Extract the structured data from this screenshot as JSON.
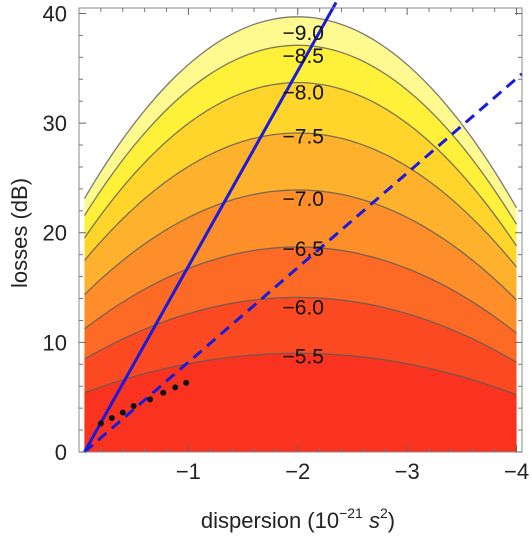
{
  "chart_data": {
    "type": "contour",
    "xlabel": {
      "base": "dispersion (10",
      "exponent": "−21",
      "unit": " s",
      "unit_exponent": "2",
      "close": ")"
    },
    "ylabel": "losses (dB)",
    "xlim": [
      0,
      -4.05
    ],
    "ylim": [
      0,
      40.5
    ],
    "x_ticks": [
      {
        "value": -1,
        "label": "−1"
      },
      {
        "value": -2,
        "label": "−2"
      },
      {
        "value": -3,
        "label": "−3"
      },
      {
        "value": -4,
        "label": "−4"
      }
    ],
    "y_ticks": [
      {
        "value": 0,
        "label": "0"
      },
      {
        "value": 10,
        "label": "10"
      },
      {
        "value": 20,
        "label": "20"
      },
      {
        "value": 30,
        "label": "30"
      },
      {
        "value": 40,
        "label": "40"
      }
    ],
    "filled_region_x": [
      -0.05,
      -4.0
    ],
    "contour_levels": [
      {
        "label": "−5.5",
        "value": -5.5,
        "peak_x": -2.0,
        "peak_y": 9.0,
        "fill": "#f9331f",
        "label_y": 8.7
      },
      {
        "label": "−6.0",
        "value": -6.0,
        "peak_x": -2.0,
        "peak_y": 14.1,
        "fill": "#fb4a22",
        "label_y": 13.2
      },
      {
        "label": "−6.5",
        "value": -6.5,
        "peak_x": -2.0,
        "peak_y": 18.7,
        "fill": "#fc6a26",
        "label_y": 18.5
      },
      {
        "label": "−7.0",
        "value": -7.0,
        "peak_x": -2.0,
        "peak_y": 23.9,
        "fill": "#fd8e2a",
        "label_y": 23.1
      },
      {
        "label": "−7.5",
        "value": -7.5,
        "peak_x": -2.0,
        "peak_y": 29.1,
        "fill": "#feb12c",
        "label_y": 28.8
      },
      {
        "label": "−8.0",
        "value": -8.0,
        "peak_x": -2.0,
        "peak_y": 33.7,
        "fill": "#ffd52c",
        "label_y": 32.8
      },
      {
        "label": "−8.5",
        "value": -8.5,
        "peak_x": -2.0,
        "peak_y": 37.1,
        "fill": "#fff03a",
        "label_y": 36.1
      },
      {
        "label": "−9.0",
        "value": -9.0,
        "peak_x": -2.0,
        "peak_y": 39.7,
        "fill": "#fffa90",
        "label_y": 38.2
      }
    ],
    "inner_fill": "#f7201a",
    "lines": [
      {
        "style": "solid",
        "color": "#1a1adb",
        "points": [
          [
            -0.05,
            0
          ],
          [
            -2.35,
            41.0
          ]
        ]
      },
      {
        "style": "dashed",
        "color": "#1a1adb",
        "points": [
          [
            -0.05,
            0
          ],
          [
            -4.05,
            34.5
          ]
        ]
      }
    ],
    "scatter": {
      "color": "#111111",
      "points": [
        [
          -0.2,
          2.6
        ],
        [
          -0.3,
          3.1
        ],
        [
          -0.4,
          3.6
        ],
        [
          -0.5,
          4.2
        ],
        [
          -0.65,
          4.8
        ],
        [
          -0.77,
          5.4
        ],
        [
          -0.88,
          5.9
        ],
        [
          -0.98,
          6.3
        ]
      ]
    }
  }
}
